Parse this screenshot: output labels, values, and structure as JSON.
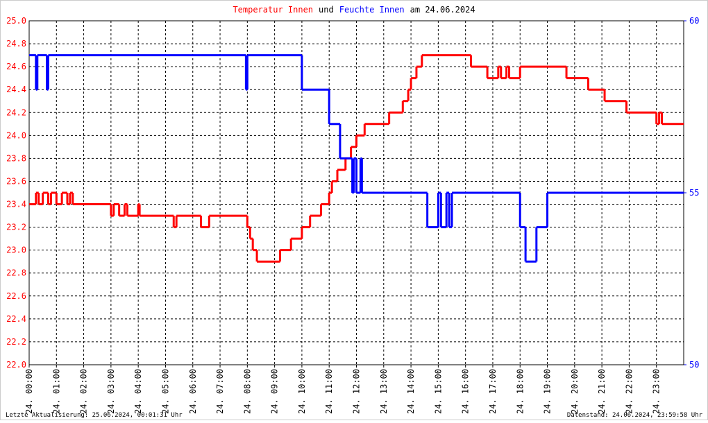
{
  "chart_data": {
    "type": "line",
    "title": {
      "part1": "Temperatur Innen",
      "part2": "und",
      "part3": "Feuchte Innen",
      "part4": "am 24.06.2024"
    },
    "footer_left": "Letzte Aktualisierung: 25.06.2024, 00:01:31 Uhr",
    "footer_right": "Datenstand: 24.06.2024, 23:59:58 Uhr",
    "grid": true,
    "xlim": [
      0,
      24
    ],
    "xticks": [
      {
        "value": 0,
        "label": "24. 00:00"
      },
      {
        "value": 1,
        "label": "24. 01:00"
      },
      {
        "value": 2,
        "label": "24. 02:00"
      },
      {
        "value": 3,
        "label": "24. 03:00"
      },
      {
        "value": 4,
        "label": "24. 04:00"
      },
      {
        "value": 5,
        "label": "24. 05:00"
      },
      {
        "value": 6,
        "label": "24. 06:00"
      },
      {
        "value": 7,
        "label": "24. 07:00"
      },
      {
        "value": 8,
        "label": "24. 08:00"
      },
      {
        "value": 9,
        "label": "24. 09:00"
      },
      {
        "value": 10,
        "label": "24. 10:00"
      },
      {
        "value": 11,
        "label": "24. 11:00"
      },
      {
        "value": 12,
        "label": "24. 12:00"
      },
      {
        "value": 13,
        "label": "24. 13:00"
      },
      {
        "value": 14,
        "label": "24. 14:00"
      },
      {
        "value": 15,
        "label": "24. 15:00"
      },
      {
        "value": 16,
        "label": "24. 16:00"
      },
      {
        "value": 17,
        "label": "24. 17:00"
      },
      {
        "value": 18,
        "label": "24. 18:00"
      },
      {
        "value": 19,
        "label": "24. 19:00"
      },
      {
        "value": 20,
        "label": "24. 20:00"
      },
      {
        "value": 21,
        "label": "24. 21:00"
      },
      {
        "value": 22,
        "label": "24. 22:00"
      },
      {
        "value": 23,
        "label": "24. 23:00"
      }
    ],
    "ylim": [
      22,
      25
    ],
    "yticks": [
      {
        "value": 22,
        "label": "22.0"
      },
      {
        "value": 22.2,
        "label": "22.2"
      },
      {
        "value": 22.4,
        "label": "22.4"
      },
      {
        "value": 22.6,
        "label": "22.6"
      },
      {
        "value": 22.8,
        "label": "22.8"
      },
      {
        "value": 23,
        "label": "23.0"
      },
      {
        "value": 23.2,
        "label": "23.2"
      },
      {
        "value": 23.4,
        "label": "23.4"
      },
      {
        "value": 23.6,
        "label": "23.6"
      },
      {
        "value": 23.8,
        "label": "23.8"
      },
      {
        "value": 24,
        "label": "24.0"
      },
      {
        "value": 24.2,
        "label": "24.2"
      },
      {
        "value": 24.4,
        "label": "24.4"
      },
      {
        "value": 24.6,
        "label": "24.6"
      },
      {
        "value": 24.8,
        "label": "24.8"
      },
      {
        "value": 25,
        "label": "25.0"
      }
    ],
    "y2lim": [
      50,
      60
    ],
    "y2ticks": [
      50,
      55,
      60
    ],
    "series": [
      {
        "name": "Temperatur Innen",
        "color": "#ff0000",
        "x": [
          0,
          0.25,
          0.35,
          0.5,
          0.7,
          0.8,
          1.0,
          1.2,
          1.4,
          1.5,
          1.6,
          3.0,
          3.1,
          3.3,
          3.5,
          3.6,
          4.0,
          4.05,
          5.3,
          5.4,
          6.3,
          6.6,
          8.0,
          8.1,
          8.2,
          8.35,
          9.2,
          9.6,
          10.0,
          10.3,
          10.7,
          11.0,
          11.1,
          11.3,
          11.6,
          11.8,
          12.0,
          12.3,
          13.2,
          13.7,
          13.9,
          14.0,
          14.2,
          14.4,
          16.2,
          16.8,
          17.2,
          17.3,
          17.5,
          17.6,
          18.0,
          19.7,
          20.5,
          21.1,
          21.9,
          23.0,
          23.1,
          23.2
        ],
        "values": [
          23.4,
          23.5,
          23.4,
          23.5,
          23.4,
          23.5,
          23.4,
          23.5,
          23.4,
          23.5,
          23.4,
          23.3,
          23.4,
          23.3,
          23.4,
          23.3,
          23.4,
          23.3,
          23.2,
          23.3,
          23.2,
          23.3,
          23.2,
          23.1,
          23.0,
          22.9,
          23.0,
          23.1,
          23.2,
          23.3,
          23.4,
          23.5,
          23.6,
          23.7,
          23.8,
          23.9,
          24.0,
          24.1,
          24.2,
          24.3,
          24.4,
          24.5,
          24.6,
          24.7,
          24.6,
          24.5,
          24.6,
          24.5,
          24.6,
          24.5,
          24.6,
          24.5,
          24.4,
          24.3,
          24.2,
          24.1,
          24.2,
          24.1
        ]
      },
      {
        "name": "Feuchte Innen",
        "color": "#0000ff",
        "axis": "y2",
        "x": [
          0,
          0.25,
          0.3,
          0.65,
          0.7,
          7.95,
          8.0,
          10.0,
          11.0,
          11.4,
          11.85,
          11.9,
          12.0,
          12.15,
          12.2,
          14.6,
          15.0,
          15.1,
          15.3,
          15.4,
          15.5,
          18.0,
          18.2,
          18.6,
          19.0
        ],
        "values": [
          59,
          58,
          59,
          58,
          59,
          58,
          59,
          58,
          57,
          56,
          55,
          56,
          55,
          56,
          55,
          54,
          55,
          54,
          55,
          54,
          55,
          54,
          53,
          54,
          55
        ]
      }
    ]
  }
}
